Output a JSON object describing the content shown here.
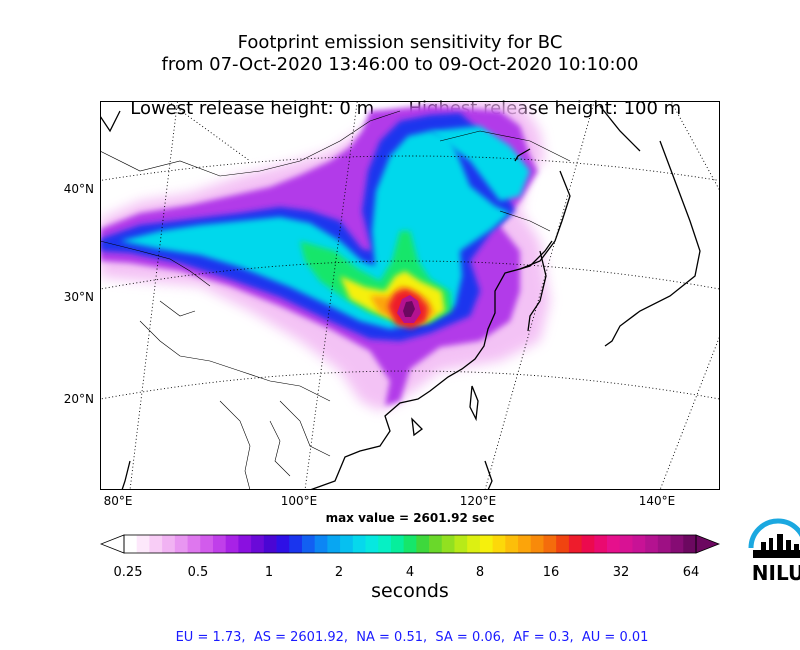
{
  "title": {
    "line1": "Footprint emission sensitivity for BC",
    "line2": "from 07-Oct-2020 13:46:00 to 09-Oct-2020 10:10:00",
    "line3_left": "Lowest release height: 0 m",
    "line3_right": "Highest release height: 100 m"
  },
  "map": {
    "lat_labels": [
      "40°N",
      "30°N",
      "20°N"
    ],
    "lon_labels": [
      "80°E",
      "100°E",
      "120°E",
      "140°E"
    ],
    "logo_text": "NILU",
    "logo_color": "#1ba8e0",
    "max_value_label": "max value = 2601.92 sec"
  },
  "colorbar": {
    "ticks": [
      "0.25",
      "0.5",
      "1",
      "2",
      "4",
      "8",
      "16",
      "32",
      "64"
    ],
    "unit": "seconds",
    "colors": [
      "#ffffff",
      "#fde8fb",
      "#f8cdf6",
      "#f1b3f3",
      "#e896f1",
      "#de77ee",
      "#d25bec",
      "#c03fea",
      "#a822e6",
      "#8a10e0",
      "#6a0ad8",
      "#4a06d4",
      "#2e10e6",
      "#1a35ee",
      "#1260f2",
      "#0c86f4",
      "#08a6f2",
      "#06c0f0",
      "#06d8ec",
      "#06e8e0",
      "#06f0c4",
      "#06ee9c",
      "#16e66a",
      "#3ed83c",
      "#6ad82a",
      "#92e020",
      "#b8ea18",
      "#dcf012",
      "#f6f00c",
      "#fcd80a",
      "#fcbe0a",
      "#fca40a",
      "#f88a0a",
      "#f46c0c",
      "#f04410",
      "#ee1c2c",
      "#ec0a4e",
      "#ea0a70",
      "#e6108c",
      "#d81294",
      "#c81296",
      "#b41290",
      "#9e1084",
      "#860c74",
      "#6c0860"
    ]
  },
  "stats": "EU = 1.73,  AS = 2601.92,  NA = 0.51,  SA = 0.06,  AF = 0.3,  AU = 0.01"
}
